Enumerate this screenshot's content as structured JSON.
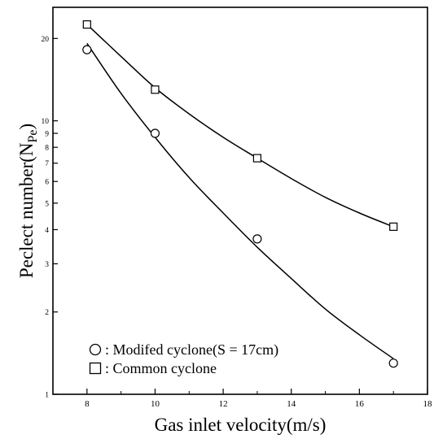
{
  "chart_data": {
    "type": "scatter",
    "xlabel": "Gas inlet velocity(m/s)",
    "ylabel_main": "Peclect number(N",
    "ylabel_sub": "Pe",
    "ylabel_close": ")",
    "xlim": [
      7,
      18
    ],
    "ylim": [
      1,
      26
    ],
    "y_scale": "log",
    "x_ticks": [
      8,
      10,
      12,
      14,
      16,
      18
    ],
    "x_tick_labels": [
      "8",
      "10",
      "12",
      "14",
      "16",
      "18"
    ],
    "x_minor_ticks": [
      9,
      11,
      13,
      15,
      17
    ],
    "y_ticks": [
      1,
      2,
      3,
      4,
      5,
      6,
      7,
      8,
      9,
      10,
      20
    ],
    "y_tick_labels": [
      "1",
      "2",
      "3",
      "4",
      "5",
      "6",
      "7",
      "8",
      "9",
      "10",
      "20"
    ],
    "series": [
      {
        "name": ": Modifed cyclone(S = 17cm)",
        "marker": "circle",
        "x": [
          8,
          10,
          13,
          17
        ],
        "y": [
          18.2,
          9.0,
          3.7,
          1.3
        ],
        "fit_curve": [
          [
            8,
            19.2
          ],
          [
            9,
            12.6
          ],
          [
            10,
            8.7
          ],
          [
            11,
            6.2
          ],
          [
            12,
            4.6
          ],
          [
            13,
            3.45
          ],
          [
            14,
            2.65
          ],
          [
            15,
            2.05
          ],
          [
            16,
            1.65
          ],
          [
            17,
            1.35
          ]
        ]
      },
      {
        "name": ": Common cyclone",
        "marker": "square",
        "x": [
          8,
          10,
          13,
          17
        ],
        "y": [
          22.5,
          13.0,
          7.3,
          4.1
        ],
        "fit_curve": [
          [
            8,
            22.5
          ],
          [
            9,
            17.2
          ],
          [
            10,
            13.2
          ],
          [
            11,
            10.6
          ],
          [
            12,
            8.7
          ],
          [
            13,
            7.3
          ],
          [
            14,
            6.15
          ],
          [
            15,
            5.25
          ],
          [
            16,
            4.6
          ],
          [
            17,
            4.1
          ]
        ]
      }
    ],
    "legend_position": "bottom-left",
    "grid": false
  }
}
